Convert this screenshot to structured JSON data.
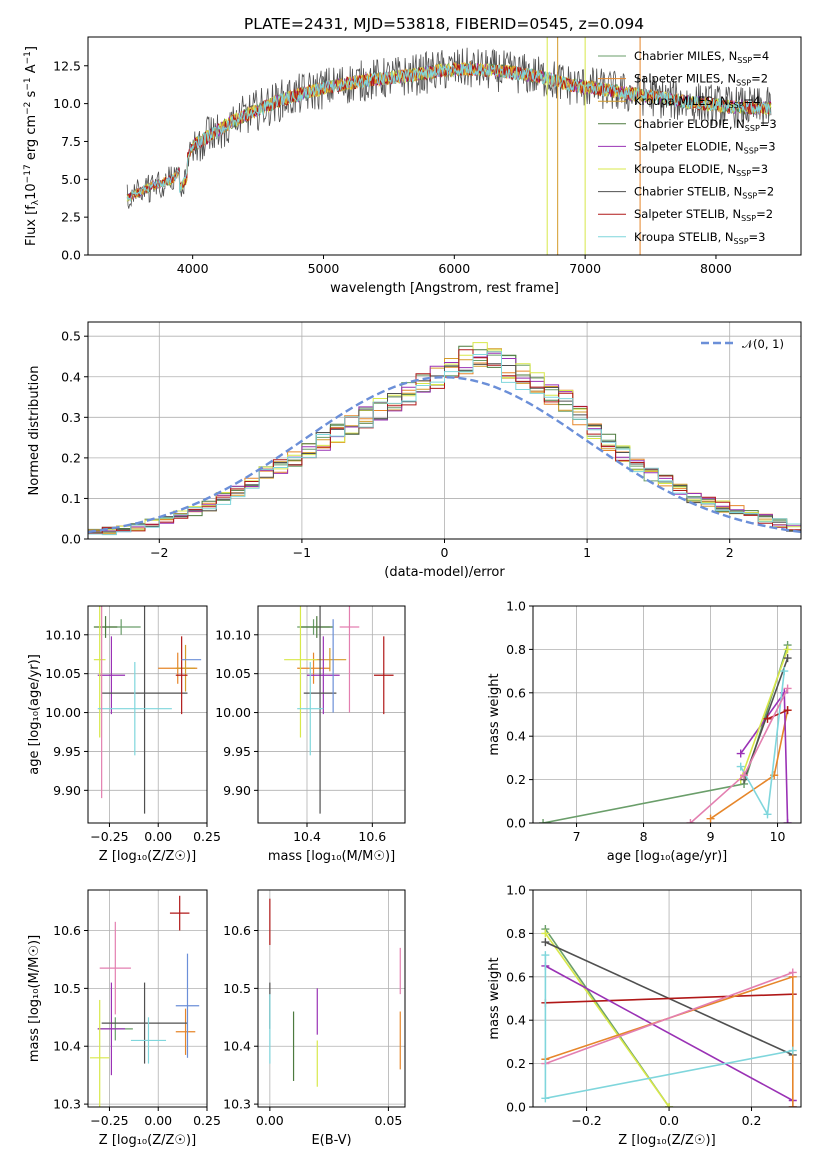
{
  "title": "PLATE=2431, MJD=53818, FIBERID=0545, z=0.094",
  "models": [
    {
      "name": "Chabrier MILES, N",
      "sub": "SSP",
      "eq": "=4",
      "color": "#6a9e6a"
    },
    {
      "name": "Salpeter MILES, N",
      "sub": "SSP",
      "eq": "=2",
      "color": "#e6862a"
    },
    {
      "name": "Kroupa MILES, N",
      "sub": "SSP",
      "eq": "=4",
      "color": "#d49b2a"
    },
    {
      "name": "Chabrier ELODIE, N",
      "sub": "SSP",
      "eq": "=3",
      "color": "#4d7a3f"
    },
    {
      "name": "Salpeter ELODIE, N",
      "sub": "SSP",
      "eq": "=3",
      "color": "#9a32b5"
    },
    {
      "name": "Kroupa ELODIE, N",
      "sub": "SSP",
      "eq": "=3",
      "color": "#d8e84a"
    },
    {
      "name": "Chabrier STELIB, N",
      "sub": "SSP",
      "eq": "=2",
      "color": "#505050"
    },
    {
      "name": "Salpeter STELIB, N",
      "sub": "SSP",
      "eq": "=2",
      "color": "#b01818"
    },
    {
      "name": "Kroupa STELIB, N",
      "sub": "SSP",
      "eq": "=3",
      "color": "#7fd6dc"
    }
  ],
  "chart_data": [
    {
      "id": "spectrum",
      "type": "line",
      "xlabel": "wavelength [Angstrom, rest frame]",
      "ylabel": "Flux [f",
      "ylabel_sub": "λ",
      "ylabel_rest": "10",
      "ylabel_sup": "−17",
      "ylabel_tail": " erg cm",
      "ylabel_sup2": "−2",
      "ylabel_tail2": " s",
      "ylabel_sup3": "−1",
      "ylabel_tail3": " A",
      "ylabel_sup4": "−1",
      "ylabel_end": "]",
      "xlim": [
        3200,
        8650
      ],
      "ylim": [
        0,
        14.4
      ],
      "xticks": [
        4000,
        5000,
        6000,
        7000,
        8000
      ],
      "yticks": [
        0.0,
        2.5,
        5.0,
        7.5,
        10.0,
        12.5
      ],
      "xticklabels": [
        "4000",
        "5000",
        "6000",
        "7000",
        "8000"
      ],
      "yticklabels": [
        "0.0",
        "2.5",
        "5.0",
        "7.5",
        "10.0",
        "12.5"
      ],
      "continuum": {
        "x": [
          3500,
          3700,
          3850,
          3950,
          4000,
          4150,
          4300,
          4500,
          4700,
          4900,
          5100,
          5300,
          5500,
          5700,
          5900,
          6100,
          6300,
          6500,
          6700,
          6900,
          7100,
          7300,
          7500,
          7700,
          7900,
          8100,
          8300
        ],
        "y": [
          3.8,
          4.6,
          5.0,
          6.2,
          7.2,
          8.0,
          8.8,
          9.6,
          10.3,
          10.8,
          11.2,
          11.5,
          11.7,
          11.9,
          12.2,
          12.3,
          12.2,
          12.0,
          11.7,
          11.2,
          11.0,
          10.7,
          10.5,
          10.2,
          10.0,
          9.8,
          9.7
        ]
      }
    },
    {
      "id": "residuals",
      "type": "line",
      "xlabel": "(data-model)/error",
      "ylabel": "Normed distribution",
      "xlim": [
        -2.5,
        2.5
      ],
      "ylim": [
        0,
        0.535
      ],
      "xticks": [
        -2,
        -1,
        0,
        1,
        2
      ],
      "yticks": [
        0.0,
        0.1,
        0.2,
        0.3,
        0.4,
        0.5
      ],
      "xticklabels": [
        "−2",
        "−1",
        "0",
        "1",
        "2"
      ],
      "yticklabels": [
        "0.0",
        "0.1",
        "0.2",
        "0.3",
        "0.4",
        "0.5"
      ],
      "legend": "𝒩(0, 1)",
      "legend_position": "top-right",
      "gaussian": {
        "mu": 0,
        "sigma": 1,
        "color": "#6b8fd8"
      },
      "histogram": {
        "bin_edges_start": -2.5,
        "bin_width": 0.1,
        "base_values": [
          0.015,
          0.02,
          0.025,
          0.03,
          0.04,
          0.05,
          0.06,
          0.07,
          0.08,
          0.1,
          0.12,
          0.14,
          0.16,
          0.18,
          0.2,
          0.22,
          0.24,
          0.26,
          0.28,
          0.3,
          0.32,
          0.34,
          0.36,
          0.38,
          0.4,
          0.42,
          0.44,
          0.45,
          0.44,
          0.42,
          0.4,
          0.38,
          0.36,
          0.34,
          0.3,
          0.27,
          0.24,
          0.21,
          0.18,
          0.16,
          0.14,
          0.12,
          0.1,
          0.09,
          0.08,
          0.07,
          0.06,
          0.05,
          0.04,
          0.03
        ]
      }
    },
    {
      "id": "age-z",
      "type": "scatter",
      "xlabel": "Z [log₁₀(Z/Z☉)]",
      "ylabel": "age  [log₁₀(age/yr)]",
      "xlim": [
        -0.36,
        0.25
      ],
      "ylim": [
        9.858,
        10.137
      ],
      "xticks": [
        -0.25,
        0.0,
        0.25
      ],
      "yticks": [
        9.9,
        9.95,
        10.0,
        10.05,
        10.1
      ],
      "xticklabels": [
        "−0.25",
        "0.00",
        "0.25"
      ],
      "yticklabels": [
        "9.90",
        "9.95",
        "10.00",
        "10.05",
        "10.10"
      ],
      "points": [
        {
          "x": -0.19,
          "y": 10.11,
          "xerr": 0.1,
          "yerr": 0.01,
          "model": 0
        },
        {
          "x": 0.1,
          "y": 10.057,
          "xerr": 0.1,
          "yerr": 0.02,
          "model": 1
        },
        {
          "x": 0.14,
          "y": 10.057,
          "xerr": 0.05,
          "yerr": 0.03,
          "model": 2
        },
        {
          "x": -0.27,
          "y": 10.11,
          "xerr": 0.06,
          "yerr": 0.014,
          "model": 3
        },
        {
          "x": -0.24,
          "y": 10.048,
          "xerr": 0.07,
          "yerr": 0.05,
          "model": 4
        },
        {
          "x": -0.3,
          "y": 10.068,
          "xerr": 0.03,
          "yerr": 0.1,
          "model": 5
        },
        {
          "x": -0.07,
          "y": 10.025,
          "xerr": 0.22,
          "yerr": 0.155,
          "model": 6
        },
        {
          "x": 0.12,
          "y": 10.048,
          "xerr": 0.03,
          "yerr": 0.05,
          "model": 7
        },
        {
          "x": -0.12,
          "y": 10.005,
          "xerr": 0.19,
          "yerr": 0.06,
          "model": 8
        },
        {
          "x": -0.29,
          "y": 10.025,
          "xerr": 0.0,
          "yerr": 0.135,
          "model": 9
        },
        {
          "x": 0.17,
          "y": 10.068,
          "xerr": 0.05,
          "yerr": 0.0,
          "model": 10
        }
      ]
    },
    {
      "id": "age-mass",
      "type": "scatter",
      "xlabel": "mass [log₁₀(M/M☉)]",
      "ylabel": "",
      "xlim": [
        10.25,
        10.7
      ],
      "ylim": [
        9.858,
        10.137
      ],
      "xticks": [
        10.4,
        10.6
      ],
      "yticks": [
        9.9,
        9.95,
        10.0,
        10.05,
        10.1
      ],
      "xticklabels": [
        "10.4",
        "10.6"
      ],
      "yticklabels": [
        "9.90",
        "9.95",
        "10.00",
        "10.05",
        "10.10"
      ],
      "points": [
        {
          "x": 10.42,
          "y": 10.11,
          "xerr": 0.05,
          "yerr": 0.01,
          "model": 0
        },
        {
          "x": 10.42,
          "y": 10.057,
          "xerr": 0.05,
          "yerr": 0.02,
          "model": 1
        },
        {
          "x": 10.47,
          "y": 10.068,
          "xerr": 0.05,
          "yerr": 0.015,
          "model": 2
        },
        {
          "x": 10.43,
          "y": 10.11,
          "xerr": 0.05,
          "yerr": 0.014,
          "model": 3
        },
        {
          "x": 10.45,
          "y": 10.048,
          "xerr": 0.05,
          "yerr": 0.05,
          "model": 4
        },
        {
          "x": 10.38,
          "y": 10.068,
          "xerr": 0.05,
          "yerr": 0.1,
          "model": 5
        },
        {
          "x": 10.44,
          "y": 10.025,
          "xerr": 0.05,
          "yerr": 0.155,
          "model": 6
        },
        {
          "x": 10.635,
          "y": 10.048,
          "xerr": 0.03,
          "yerr": 0.05,
          "model": 7
        },
        {
          "x": 10.41,
          "y": 10.005,
          "xerr": 0.04,
          "yerr": 0.06,
          "model": 8
        },
        {
          "x": 10.53,
          "y": 10.11,
          "xerr": 0.03,
          "yerr": 0.11,
          "model": 9
        },
        {
          "x": 10.48,
          "y": 10.06,
          "xerr": 0.0,
          "yerr": 0.06,
          "model": 10
        }
      ]
    },
    {
      "id": "mw-age",
      "type": "line",
      "xlabel": "age  [log₁₀(age/yr)]",
      "ylabel": "mass weight",
      "xlim": [
        6.35,
        10.35
      ],
      "ylim": [
        0.0,
        1.0
      ],
      "xticks": [
        7,
        8,
        9,
        10
      ],
      "yticks": [
        0.0,
        0.2,
        0.4,
        0.6,
        0.8,
        1.0
      ],
      "xticklabels": [
        "7",
        "8",
        "9",
        "10"
      ],
      "yticklabels": [
        "0.0",
        "0.2",
        "0.4",
        "0.6",
        "0.8",
        "1.0"
      ],
      "series": [
        {
          "model": 0,
          "x": [
            6.5,
            9.5,
            10.15
          ],
          "y": [
            0.0,
            0.18,
            0.82
          ]
        },
        {
          "model": 1,
          "x": [
            9.0,
            9.95,
            10.15
          ],
          "y": [
            0.02,
            0.22,
            0.52
          ]
        },
        {
          "model": 4,
          "x": [
            9.45,
            10.1,
            10.15
          ],
          "y": [
            0.32,
            0.6,
            0.0
          ]
        },
        {
          "model": 5,
          "x": [
            9.45,
            10.15
          ],
          "y": [
            0.2,
            0.8
          ]
        },
        {
          "model": 6,
          "x": [
            9.5,
            10.15
          ],
          "y": [
            0.2,
            0.76
          ]
        },
        {
          "model": 7,
          "x": [
            9.85,
            10.15
          ],
          "y": [
            0.48,
            0.52
          ]
        },
        {
          "model": 8,
          "x": [
            9.45,
            9.85,
            10.1
          ],
          "y": [
            0.26,
            0.04,
            0.7
          ]
        },
        {
          "model": 9,
          "x": [
            8.7,
            9.5,
            10.15
          ],
          "y": [
            0.0,
            0.22,
            0.62
          ]
        }
      ]
    },
    {
      "id": "mass-z",
      "type": "scatter",
      "xlabel": "Z [log₁₀(Z/Z☉)]",
      "ylabel": "mass [log₁₀(M/M☉)]",
      "xlim": [
        -0.36,
        0.25
      ],
      "ylim": [
        10.295,
        10.67
      ],
      "xticks": [
        -0.25,
        0.0,
        0.25
      ],
      "yticks": [
        10.3,
        10.4,
        10.5,
        10.6
      ],
      "xticklabels": [
        "−0.25",
        "0.00",
        "0.25"
      ],
      "yticklabels": [
        "10.3",
        "10.4",
        "10.5",
        "10.6"
      ],
      "points": [
        {
          "x": -0.22,
          "y": 10.43,
          "xerr": 0.09,
          "yerr": 0.02,
          "model": 0
        },
        {
          "x": 0.11,
          "y": 10.63,
          "xerr": 0.05,
          "yerr": 0.03,
          "model": 7
        },
        {
          "x": 0.14,
          "y": 10.425,
          "xerr": 0.05,
          "yerr": 0.04,
          "model": 1
        },
        {
          "x": -0.24,
          "y": 10.43,
          "xerr": 0.07,
          "yerr": 0.08,
          "model": 4
        },
        {
          "x": -0.3,
          "y": 10.38,
          "xerr": 0.05,
          "yerr": 0.1,
          "model": 5
        },
        {
          "x": -0.07,
          "y": 10.44,
          "xerr": 0.22,
          "yerr": 0.07,
          "model": 6
        },
        {
          "x": -0.05,
          "y": 10.41,
          "xerr": 0.09,
          "yerr": 0.04,
          "model": 8
        },
        {
          "x": -0.22,
          "y": 10.535,
          "xerr": 0.08,
          "yerr": 0.08,
          "model": 9
        },
        {
          "x": 0.15,
          "y": 10.47,
          "xerr": 0.06,
          "yerr": 0.09,
          "model": 10
        }
      ]
    },
    {
      "id": "mass-ebv",
      "type": "scatter",
      "xlabel": "E(B-V)",
      "ylabel": "",
      "xlim": [
        -0.005,
        0.057
      ],
      "ylim": [
        10.295,
        10.67
      ],
      "xticks": [
        0.0,
        0.05
      ],
      "yticks": [
        10.3,
        10.4,
        10.5,
        10.6
      ],
      "xticklabels": [
        "0.00",
        "0.05"
      ],
      "yticklabels": [
        "10.3",
        "10.4",
        "10.5",
        "10.6"
      ],
      "points": [
        {
          "x": 0.0,
          "y": 10.615,
          "yerr": 0.04,
          "model": 7
        },
        {
          "x": 0.0,
          "y": 10.47,
          "yerr": 0.04,
          "model": 6
        },
        {
          "x": 0.0,
          "y": 10.43,
          "yerr": 0.06,
          "model": 8
        },
        {
          "x": 0.01,
          "y": 10.4,
          "yerr": 0.06,
          "model": 3
        },
        {
          "x": 0.02,
          "y": 10.46,
          "yerr": 0.04,
          "model": 4
        },
        {
          "x": 0.02,
          "y": 10.37,
          "yerr": 0.04,
          "model": 5
        },
        {
          "x": 0.055,
          "y": 10.53,
          "yerr": 0.04,
          "model": 9
        },
        {
          "x": 0.055,
          "y": 10.41,
          "yerr": 0.05,
          "model": 1
        }
      ]
    },
    {
      "id": "mw-z",
      "type": "line",
      "xlabel": "Z [log₁₀(Z/Z☉)]",
      "ylabel": "mass weight",
      "xlim": [
        -0.33,
        0.32
      ],
      "ylim": [
        0.0,
        1.0
      ],
      "xticks": [
        -0.2,
        0.0,
        0.2
      ],
      "yticks": [
        0.0,
        0.2,
        0.4,
        0.6,
        0.8,
        1.0
      ],
      "xticklabels": [
        "−0.2",
        "0.0",
        "0.2"
      ],
      "yticklabels": [
        "0.0",
        "0.2",
        "0.4",
        "0.6",
        "0.8",
        "1.0"
      ],
      "series": [
        {
          "model": 0,
          "x": [
            -0.3,
            0.0
          ],
          "y": [
            0.82,
            0.0
          ]
        },
        {
          "model": 5,
          "x": [
            -0.3,
            0.0
          ],
          "y": [
            0.8,
            0.0
          ]
        },
        {
          "model": 6,
          "x": [
            -0.3,
            0.3
          ],
          "y": [
            0.76,
            0.24
          ]
        },
        {
          "model": 7,
          "x": [
            -0.3,
            0.3
          ],
          "y": [
            0.48,
            0.52
          ]
        },
        {
          "model": 4,
          "x": [
            -0.3,
            0.3,
            0.3
          ],
          "y": [
            0.65,
            0.03,
            0.0
          ]
        },
        {
          "model": 1,
          "x": [
            -0.3,
            0.3,
            0.3
          ],
          "y": [
            0.22,
            0.6,
            0.0
          ]
        },
        {
          "model": 9,
          "x": [
            -0.3,
            0.3
          ],
          "y": [
            0.2,
            0.62
          ]
        },
        {
          "model": 8,
          "x": [
            -0.3,
            -0.3,
            0.3
          ],
          "y": [
            0.7,
            0.04,
            0.26
          ]
        }
      ]
    }
  ]
}
